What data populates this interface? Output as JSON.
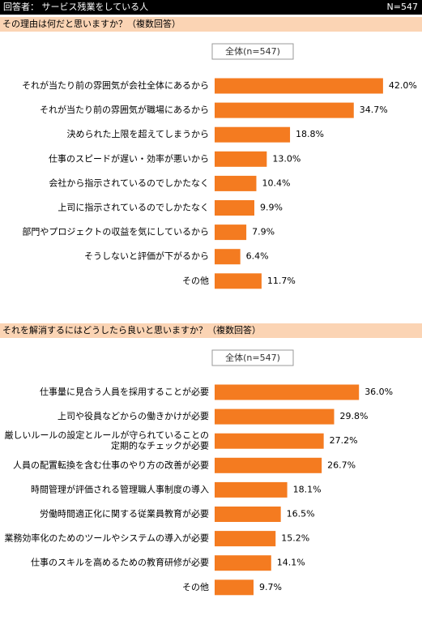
{
  "header": {
    "respondent": "回答者： サービス残業をしている人",
    "n": "N=547"
  },
  "chart_data": [
    {
      "type": "bar",
      "orientation": "horizontal",
      "title": "その理由は何だと思いますか？（複数回答）",
      "subtitle": "全体(n=547)",
      "color": "#f47b20",
      "categories": [
        "それが当たり前の雰囲気が会社全体にあるから",
        "それが当たり前の雰囲気が職場にあるから",
        "決められた上限を超えてしまうから",
        "仕事のスピードが遅い・効率が悪いから",
        "会社から指示されているのでしかたなく",
        "上司に指示されているのでしかたなく",
        "部門やプロジェクトの収益を気にしているから",
        "そうしないと評価が下がるから",
        "その他"
      ],
      "values": [
        42.0,
        34.7,
        18.8,
        13.0,
        10.4,
        9.9,
        7.9,
        6.4,
        11.7
      ],
      "value_labels": [
        "42.0%",
        "34.7%",
        "18.8%",
        "13.0%",
        "10.4%",
        "9.9%",
        "7.9%",
        "6.4%",
        "11.7%"
      ]
    },
    {
      "type": "bar",
      "orientation": "horizontal",
      "title": "それを解消するにはどうしたら良いと思いますか？（複数回答）",
      "subtitle": "全体(n=547)",
      "color": "#f47b20",
      "categories": [
        "仕事量に見合う人員を採用することが必要",
        "上司や役員などからの働きかけが必要",
        "厳しいルールの設定とルールが守られていることの\n定期的なチェックが必要",
        "人員の配置転換を含む仕事のやり方の改善が必要",
        "時間管理が評価される管理職人事制度の導入",
        "労働時間適正化に関する従業員教育が必要",
        "業務効率化のためのツールやシステムの導入が必要",
        "仕事のスキルを高めるための教育研修が必要",
        "その他"
      ],
      "values": [
        36.0,
        29.8,
        27.2,
        26.7,
        18.1,
        16.5,
        15.2,
        14.1,
        9.7
      ],
      "value_labels": [
        "36.0%",
        "29.8%",
        "27.2%",
        "26.7%",
        "18.1%",
        "16.5%",
        "15.2%",
        "14.1%",
        "9.7%"
      ]
    }
  ]
}
